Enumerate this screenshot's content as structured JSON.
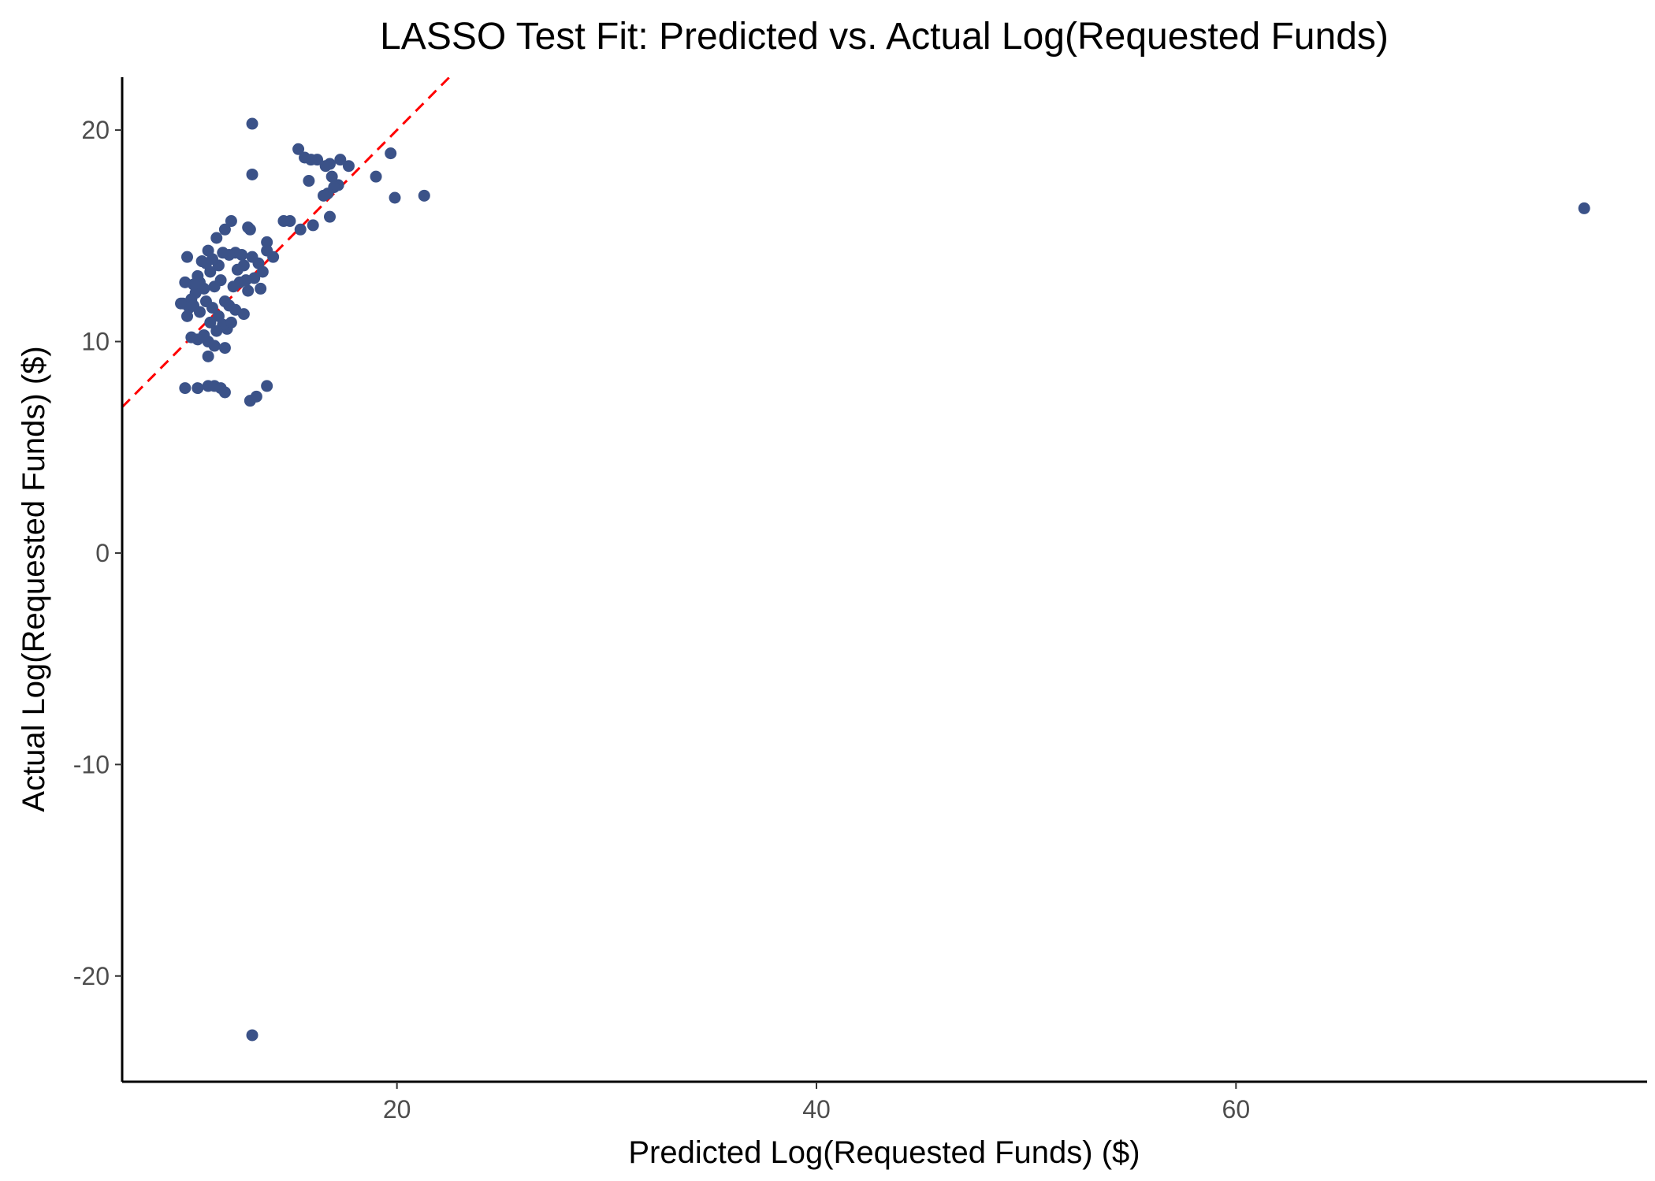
{
  "chart_data": {
    "type": "scatter",
    "title": "LASSO Test Fit: Predicted vs. Actual Log(Requested Funds)",
    "xlabel": "Predicted Log(Requested Funds) ($)",
    "ylabel": "Actual Log(Requested Funds) ($)",
    "xlim": [
      6.9,
      79.6
    ],
    "ylim": [
      -25,
      22.5
    ],
    "x_ticks": [
      20,
      40,
      60
    ],
    "y_ticks": [
      -20,
      -10,
      0,
      10,
      20
    ],
    "x_tick_labels": [
      "20",
      "40",
      "60"
    ],
    "y_tick_labels": [
      "-20",
      "-10",
      "0",
      "10",
      "20"
    ],
    "grid": false,
    "legend": "none",
    "colors": {
      "points": "#3b5288",
      "reference_line": "#ff0000",
      "axis": "#000000"
    },
    "reference_line": {
      "type": "y=x",
      "style": "dashed"
    },
    "points": [
      {
        "x": 13.1,
        "y": 20.3
      },
      {
        "x": 13.1,
        "y": 17.9
      },
      {
        "x": 13.1,
        "y": -22.8
      },
      {
        "x": 76.6,
        "y": 16.3
      },
      {
        "x": 21.3,
        "y": 16.9
      },
      {
        "x": 19.9,
        "y": 16.8
      },
      {
        "x": 19.7,
        "y": 18.9
      },
      {
        "x": 19.0,
        "y": 17.8
      },
      {
        "x": 17.7,
        "y": 18.3
      },
      {
        "x": 17.3,
        "y": 18.6
      },
      {
        "x": 17.2,
        "y": 17.4
      },
      {
        "x": 17.0,
        "y": 17.3
      },
      {
        "x": 16.9,
        "y": 17.8
      },
      {
        "x": 16.8,
        "y": 18.4
      },
      {
        "x": 16.7,
        "y": 17.0
      },
      {
        "x": 16.8,
        "y": 15.9
      },
      {
        "x": 16.6,
        "y": 18.3
      },
      {
        "x": 16.5,
        "y": 16.9
      },
      {
        "x": 16.2,
        "y": 18.6
      },
      {
        "x": 15.9,
        "y": 18.6
      },
      {
        "x": 15.6,
        "y": 18.7
      },
      {
        "x": 15.3,
        "y": 19.1
      },
      {
        "x": 15.8,
        "y": 17.6
      },
      {
        "x": 16.0,
        "y": 15.5
      },
      {
        "x": 15.4,
        "y": 15.3
      },
      {
        "x": 14.9,
        "y": 15.7
      },
      {
        "x": 14.6,
        "y": 15.7
      },
      {
        "x": 14.1,
        "y": 14.0
      },
      {
        "x": 13.8,
        "y": 14.7
      },
      {
        "x": 13.8,
        "y": 14.3
      },
      {
        "x": 13.6,
        "y": 13.3
      },
      {
        "x": 13.5,
        "y": 12.5
      },
      {
        "x": 13.4,
        "y": 13.7
      },
      {
        "x": 13.2,
        "y": 13.0
      },
      {
        "x": 13.1,
        "y": 14.0
      },
      {
        "x": 13.0,
        "y": 15.3
      },
      {
        "x": 12.9,
        "y": 15.4
      },
      {
        "x": 12.9,
        "y": 12.4
      },
      {
        "x": 12.8,
        "y": 12.9
      },
      {
        "x": 12.7,
        "y": 13.6
      },
      {
        "x": 12.6,
        "y": 14.1
      },
      {
        "x": 12.5,
        "y": 12.8
      },
      {
        "x": 12.4,
        "y": 13.4
      },
      {
        "x": 12.3,
        "y": 14.2
      },
      {
        "x": 12.2,
        "y": 12.6
      },
      {
        "x": 12.1,
        "y": 15.7
      },
      {
        "x": 12.0,
        "y": 14.1
      },
      {
        "x": 11.8,
        "y": 15.3
      },
      {
        "x": 11.7,
        "y": 14.2
      },
      {
        "x": 11.6,
        "y": 12.9
      },
      {
        "x": 11.5,
        "y": 13.6
      },
      {
        "x": 11.4,
        "y": 14.9
      },
      {
        "x": 11.3,
        "y": 12.6
      },
      {
        "x": 11.2,
        "y": 13.9
      },
      {
        "x": 11.1,
        "y": 13.3
      },
      {
        "x": 11.0,
        "y": 14.3
      },
      {
        "x": 10.9,
        "y": 13.7
      },
      {
        "x": 10.8,
        "y": 12.5
      },
      {
        "x": 10.7,
        "y": 13.8
      },
      {
        "x": 10.6,
        "y": 12.8
      },
      {
        "x": 10.5,
        "y": 13.1
      },
      {
        "x": 10.4,
        "y": 12.3
      },
      {
        "x": 10.3,
        "y": 12.7
      },
      {
        "x": 10.2,
        "y": 12.0
      },
      {
        "x": 10.0,
        "y": 14.0
      },
      {
        "x": 9.9,
        "y": 12.8
      },
      {
        "x": 10.1,
        "y": 11.6
      },
      {
        "x": 9.8,
        "y": 11.8
      },
      {
        "x": 9.7,
        "y": 11.8
      },
      {
        "x": 10.0,
        "y": 11.2
      },
      {
        "x": 10.3,
        "y": 11.7
      },
      {
        "x": 10.6,
        "y": 11.4
      },
      {
        "x": 10.9,
        "y": 11.9
      },
      {
        "x": 11.2,
        "y": 11.6
      },
      {
        "x": 11.5,
        "y": 11.2
      },
      {
        "x": 11.8,
        "y": 11.9
      },
      {
        "x": 12.0,
        "y": 11.7
      },
      {
        "x": 12.3,
        "y": 11.5
      },
      {
        "x": 12.7,
        "y": 11.3
      },
      {
        "x": 11.9,
        "y": 10.6
      },
      {
        "x": 11.7,
        "y": 10.8
      },
      {
        "x": 11.4,
        "y": 10.5
      },
      {
        "x": 11.1,
        "y": 10.9
      },
      {
        "x": 10.8,
        "y": 10.3
      },
      {
        "x": 10.5,
        "y": 10.1
      },
      {
        "x": 10.2,
        "y": 10.2
      },
      {
        "x": 11.0,
        "y": 10.0
      },
      {
        "x": 11.3,
        "y": 9.8
      },
      {
        "x": 11.8,
        "y": 9.7
      },
      {
        "x": 12.1,
        "y": 10.9
      },
      {
        "x": 11.0,
        "y": 9.3
      },
      {
        "x": 9.9,
        "y": 7.8
      },
      {
        "x": 10.5,
        "y": 7.8
      },
      {
        "x": 11.0,
        "y": 7.9
      },
      {
        "x": 11.3,
        "y": 7.9
      },
      {
        "x": 11.6,
        "y": 7.8
      },
      {
        "x": 11.8,
        "y": 7.6
      },
      {
        "x": 13.0,
        "y": 7.2
      },
      {
        "x": 13.3,
        "y": 7.4
      },
      {
        "x": 13.8,
        "y": 7.9
      }
    ]
  }
}
